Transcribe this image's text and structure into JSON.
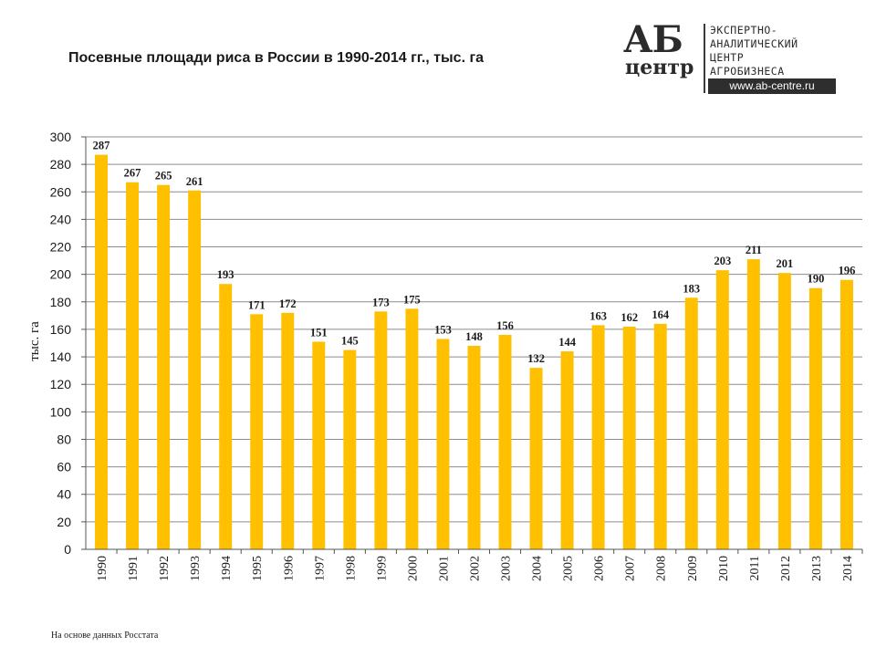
{
  "logo": {
    "mark_top": "АБ",
    "mark_bottom": "центр",
    "lines": [
      "ЭКСПЕРТНО-",
      "АНАЛИТИЧЕСКИЙ",
      "ЦЕНТР",
      "АГРОБИЗНЕСА"
    ],
    "url": "www.ab-centre.ru"
  },
  "source_note": "На основе данных  Росстата",
  "chart_data": {
    "type": "bar",
    "title": "Посевные площади риса в России в 1990-2014 гг., тыс. га",
    "ylabel": "тыс. га",
    "xlabel": "",
    "ylim": [
      0,
      300
    ],
    "ytick_step": 20,
    "grid": true,
    "bar_color": "#FFC000",
    "categories": [
      "1990",
      "1991",
      "1992",
      "1993",
      "1994",
      "1995",
      "1996",
      "1997",
      "1998",
      "1999",
      "2000",
      "2001",
      "2002",
      "2003",
      "2004",
      "2005",
      "2006",
      "2007",
      "2008",
      "2009",
      "2010",
      "2011",
      "2012",
      "2013",
      "2014"
    ],
    "values": [
      287,
      267,
      265,
      261,
      193,
      171,
      172,
      151,
      145,
      173,
      175,
      153,
      148,
      156,
      132,
      144,
      163,
      162,
      164,
      183,
      203,
      211,
      201,
      190,
      196
    ]
  }
}
